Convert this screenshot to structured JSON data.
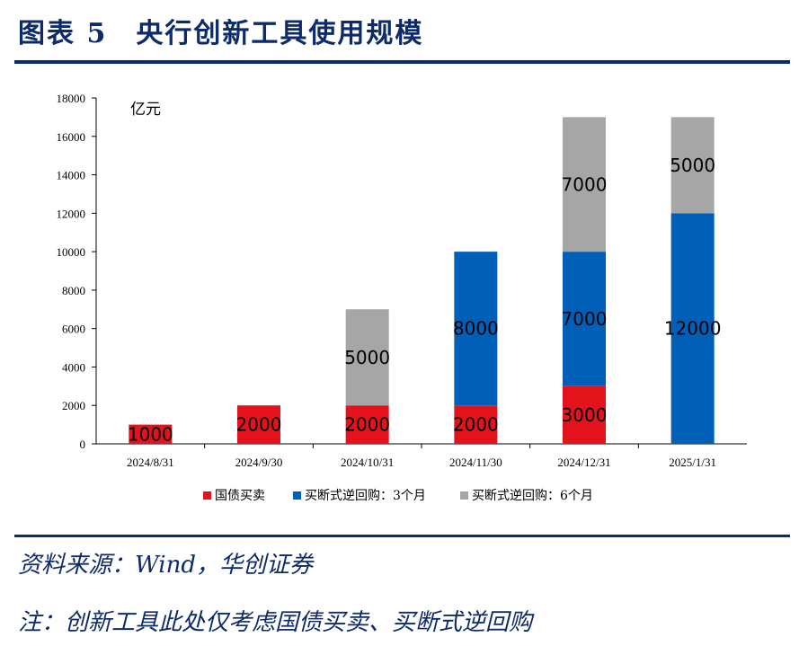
{
  "title": "图表 5　央行创新工具使用规模",
  "source": "资料来源：Wind，华创证券",
  "note": "注：创新工具此处仅考虑国债买卖、买断式逆回购",
  "chart_data": {
    "type": "bar",
    "stacked": true,
    "unit_label": "亿元",
    "categories": [
      "2024/8/31",
      "2024/9/30",
      "2024/10/31",
      "2024/11/30",
      "2024/12/31",
      "2025/1/31"
    ],
    "series": [
      {
        "name": "国债买卖",
        "color": "#e3121b",
        "values": [
          1000,
          2000,
          2000,
          2000,
          3000,
          0
        ]
      },
      {
        "name": "买断式逆回购：3个月",
        "color": "#0060b8",
        "values": [
          0,
          0,
          0,
          8000,
          7000,
          12000
        ]
      },
      {
        "name": "买断式逆回购：6个月",
        "color": "#a6a6a6",
        "values": [
          0,
          0,
          5000,
          0,
          7000,
          5000
        ]
      }
    ],
    "ylim": [
      0,
      18000
    ],
    "yticks": [
      0,
      2000,
      4000,
      6000,
      8000,
      10000,
      12000,
      14000,
      16000,
      18000
    ],
    "grid": false,
    "legend": "bottom"
  }
}
